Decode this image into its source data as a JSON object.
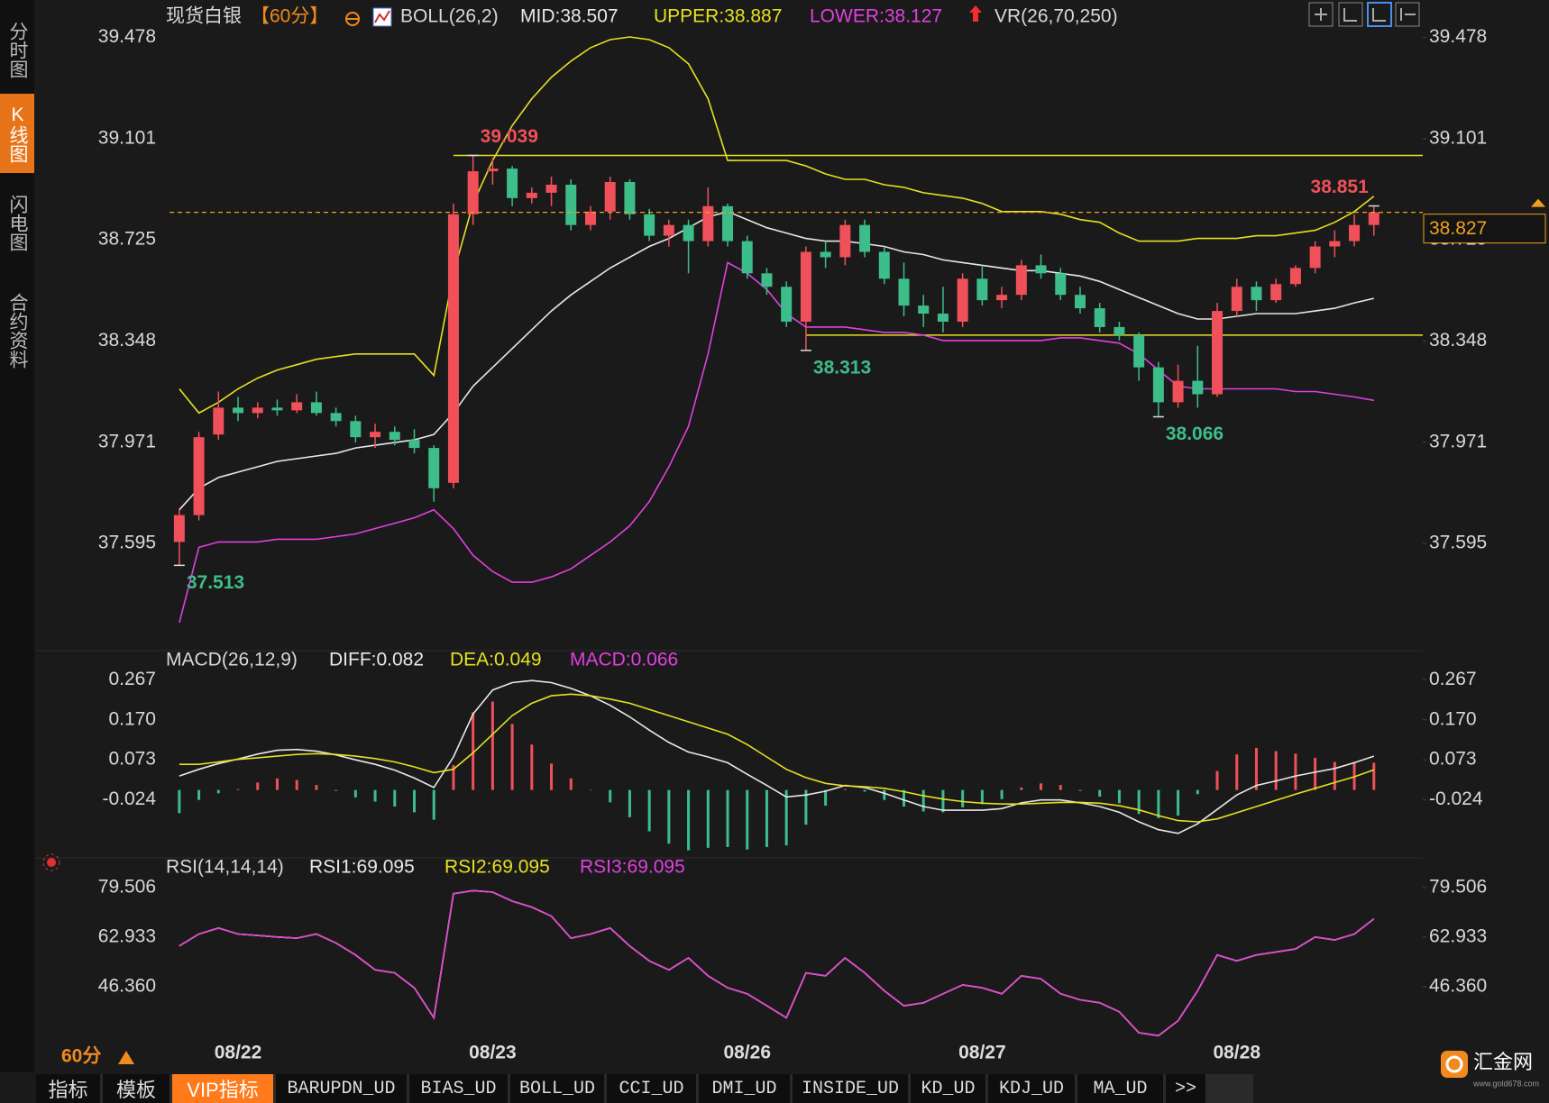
{
  "chart_data": [
    {
      "type": "candlestick",
      "title": "现货白银",
      "period": "【60分】",
      "indicator": "BOLL(26,2)",
      "extra_indicator": "VR(26,70,250)",
      "up_color": "#f0505a",
      "down_color": "#3dbd8a",
      "candles": {
        "open": [
          37.6,
          37.7,
          38.0,
          38.1,
          38.08,
          38.1,
          38.09,
          38.12,
          38.08,
          38.05,
          37.99,
          38.01,
          37.98,
          37.95,
          37.82,
          38.82,
          38.98,
          38.99,
          38.88,
          38.9,
          38.93,
          38.78,
          38.83,
          38.94,
          38.82,
          38.74,
          38.78,
          38.72,
          38.85,
          38.72,
          38.6,
          38.55,
          38.42,
          38.68,
          38.66,
          38.78,
          38.68,
          38.58,
          38.48,
          38.45,
          38.42,
          38.58,
          38.5,
          38.52,
          38.63,
          38.6,
          38.52,
          38.47,
          38.4,
          38.37,
          38.25,
          38.12,
          38.2,
          38.15,
          38.46,
          38.55,
          38.5,
          38.56,
          38.62,
          38.7,
          38.72,
          38.78
        ],
        "high": [
          37.72,
          38.01,
          38.16,
          38.14,
          38.12,
          38.13,
          38.15,
          38.16,
          38.1,
          38.07,
          38.04,
          38.03,
          38.02,
          37.96,
          38.86,
          39.039,
          39.03,
          39.0,
          38.92,
          38.96,
          38.95,
          38.85,
          38.96,
          38.95,
          38.84,
          38.8,
          38.8,
          38.92,
          38.86,
          38.74,
          38.62,
          38.57,
          38.7,
          38.72,
          38.8,
          38.8,
          38.7,
          38.64,
          38.52,
          38.55,
          38.6,
          38.63,
          38.55,
          38.65,
          38.67,
          38.62,
          38.55,
          38.49,
          38.42,
          38.38,
          38.27,
          38.26,
          38.33,
          38.49,
          38.58,
          38.57,
          38.58,
          38.63,
          38.72,
          38.76,
          38.82,
          38.851
        ],
        "low": [
          37.513,
          37.68,
          37.98,
          38.05,
          38.06,
          38.07,
          38.08,
          38.07,
          38.03,
          37.97,
          37.95,
          37.96,
          37.93,
          37.75,
          37.8,
          38.78,
          38.93,
          38.85,
          38.86,
          38.85,
          38.76,
          38.76,
          38.8,
          38.8,
          38.72,
          38.7,
          38.6,
          38.7,
          38.7,
          38.58,
          38.52,
          38.4,
          38.313,
          38.62,
          38.63,
          38.66,
          38.56,
          38.44,
          38.4,
          38.38,
          38.4,
          38.48,
          38.47,
          38.5,
          38.58,
          38.5,
          38.45,
          38.38,
          38.35,
          38.2,
          38.066,
          38.1,
          38.1,
          38.14,
          38.44,
          38.46,
          38.49,
          38.55,
          38.6,
          38.66,
          38.7,
          38.74
        ],
        "close": [
          37.7,
          37.99,
          38.1,
          38.08,
          38.1,
          38.09,
          38.12,
          38.08,
          38.05,
          37.99,
          38.01,
          37.98,
          37.95,
          37.8,
          38.82,
          38.98,
          38.99,
          38.88,
          38.9,
          38.93,
          38.78,
          38.83,
          38.94,
          38.82,
          38.74,
          38.78,
          38.72,
          38.85,
          38.72,
          38.6,
          38.55,
          38.42,
          38.68,
          38.66,
          38.78,
          38.68,
          38.58,
          38.48,
          38.45,
          38.42,
          38.58,
          38.5,
          38.52,
          38.63,
          38.6,
          38.52,
          38.47,
          38.4,
          38.37,
          38.25,
          38.12,
          38.2,
          38.15,
          38.46,
          38.55,
          38.5,
          38.56,
          38.62,
          38.7,
          38.72,
          38.78,
          38.827
        ]
      },
      "series": [
        {
          "name": "MID:38.507",
          "color": "#e8e8e8",
          "values": [
            37.72,
            37.8,
            37.84,
            37.86,
            37.88,
            37.9,
            37.91,
            37.92,
            37.93,
            37.95,
            37.96,
            37.97,
            37.98,
            38.0,
            38.08,
            38.18,
            38.25,
            38.32,
            38.39,
            38.46,
            38.52,
            38.57,
            38.62,
            38.66,
            38.7,
            38.73,
            38.77,
            38.81,
            38.83,
            38.8,
            38.77,
            38.75,
            38.73,
            38.72,
            38.72,
            38.71,
            38.7,
            38.68,
            38.67,
            38.65,
            38.64,
            38.63,
            38.62,
            38.61,
            38.61,
            38.6,
            38.59,
            38.57,
            38.54,
            38.51,
            38.48,
            38.45,
            38.43,
            38.43,
            38.44,
            38.45,
            38.45,
            38.45,
            38.46,
            38.47,
            38.49,
            38.507
          ]
        },
        {
          "name": "UPPER:38.887",
          "color": "#e6e020",
          "values": [
            38.17,
            38.08,
            38.12,
            38.17,
            38.21,
            38.24,
            38.26,
            38.28,
            38.29,
            38.3,
            38.3,
            38.3,
            38.3,
            38.22,
            38.6,
            38.86,
            39.02,
            39.15,
            39.25,
            39.33,
            39.39,
            39.44,
            39.47,
            39.48,
            39.47,
            39.44,
            39.38,
            39.25,
            39.02,
            39.02,
            39.02,
            39.02,
            39.0,
            38.97,
            38.95,
            38.95,
            38.93,
            38.92,
            38.9,
            38.89,
            38.88,
            38.86,
            38.83,
            38.83,
            38.83,
            38.82,
            38.8,
            38.79,
            38.75,
            38.72,
            38.72,
            38.72,
            38.73,
            38.73,
            38.73,
            38.74,
            38.74,
            38.75,
            38.76,
            38.79,
            38.83,
            38.887
          ]
        },
        {
          "name": "LOWER:38.127",
          "color": "#e040e0",
          "values": [
            37.3,
            37.58,
            37.6,
            37.6,
            37.6,
            37.61,
            37.61,
            37.61,
            37.62,
            37.63,
            37.65,
            37.67,
            37.69,
            37.72,
            37.65,
            37.55,
            37.49,
            37.45,
            37.45,
            37.47,
            37.5,
            37.55,
            37.6,
            37.66,
            37.75,
            37.88,
            38.03,
            38.3,
            38.64,
            38.6,
            38.54,
            38.45,
            38.4,
            38.4,
            38.4,
            38.39,
            38.38,
            38.38,
            38.37,
            38.35,
            38.35,
            38.35,
            38.35,
            38.35,
            38.35,
            38.36,
            38.36,
            38.35,
            38.34,
            38.3,
            38.24,
            38.18,
            38.17,
            38.17,
            38.17,
            38.17,
            38.17,
            38.16,
            38.16,
            38.15,
            38.14,
            38.127
          ]
        }
      ],
      "ylim": [
        37.219,
        39.584
      ],
      "yticks": [
        39.478,
        39.101,
        38.725,
        38.348,
        37.971,
        37.595
      ],
      "hlines": [
        39.039,
        38.37
      ],
      "hline_color": "#e6e020",
      "last_price": 38.827,
      "last_price_color": "#f0a020"
    },
    {
      "type": "macd",
      "title": "MACD(26,12,9)",
      "up_color": "#f0505a",
      "down_color": "#3dbd8a",
      "series": [
        {
          "name": "DIFF:0.082",
          "color": "#e8e8e8",
          "values": [
            0.034,
            0.05,
            0.064,
            0.075,
            0.087,
            0.096,
            0.098,
            0.094,
            0.085,
            0.073,
            0.062,
            0.048,
            0.029,
            0.006,
            0.08,
            0.184,
            0.242,
            0.26,
            0.265,
            0.26,
            0.246,
            0.228,
            0.205,
            0.177,
            0.145,
            0.115,
            0.092,
            0.08,
            0.066,
            0.038,
            0.011,
            -0.017,
            -0.012,
            -0.003,
            0.011,
            0.006,
            -0.008,
            -0.024,
            -0.04,
            -0.049,
            -0.049,
            -0.049,
            -0.045,
            -0.031,
            -0.024,
            -0.024,
            -0.031,
            -0.04,
            -0.054,
            -0.077,
            -0.096,
            -0.105,
            -0.082,
            -0.047,
            -0.012,
            0.011,
            0.022,
            0.034,
            0.043,
            0.052,
            0.066,
            0.082
          ]
        },
        {
          "name": "DEA:0.049",
          "color": "#e6e020",
          "values": [
            0.062,
            0.062,
            0.068,
            0.074,
            0.078,
            0.082,
            0.086,
            0.088,
            0.086,
            0.082,
            0.076,
            0.068,
            0.056,
            0.042,
            0.05,
            0.09,
            0.135,
            0.18,
            0.21,
            0.228,
            0.232,
            0.228,
            0.22,
            0.21,
            0.195,
            0.18,
            0.165,
            0.15,
            0.135,
            0.11,
            0.08,
            0.05,
            0.03,
            0.016,
            0.01,
            0.008,
            0.004,
            -0.004,
            -0.014,
            -0.022,
            -0.028,
            -0.032,
            -0.034,
            -0.034,
            -0.032,
            -0.03,
            -0.03,
            -0.032,
            -0.038,
            -0.048,
            -0.062,
            -0.074,
            -0.077,
            -0.07,
            -0.055,
            -0.04,
            -0.025,
            -0.01,
            0.004,
            0.018,
            0.032,
            0.049
          ]
        },
        {
          "name": "MACD:0.066",
          "color": "#e040e0",
          "type": "bar",
          "values": [
            -0.056,
            -0.024,
            -0.008,
            0.002,
            0.018,
            0.028,
            0.024,
            0.012,
            -0.002,
            -0.018,
            -0.028,
            -0.04,
            -0.054,
            -0.072,
            0.06,
            0.188,
            0.214,
            0.16,
            0.11,
            0.064,
            0.028,
            0,
            -0.03,
            -0.066,
            -0.1,
            -0.13,
            -0.146,
            -0.14,
            -0.138,
            -0.144,
            -0.138,
            -0.134,
            -0.084,
            -0.038,
            0.002,
            -0.004,
            -0.024,
            -0.04,
            -0.052,
            -0.054,
            -0.042,
            -0.034,
            -0.022,
            0.006,
            0.016,
            0.012,
            -0.002,
            -0.016,
            -0.032,
            -0.058,
            -0.068,
            -0.062,
            -0.01,
            0.046,
            0.086,
            0.102,
            0.094,
            0.088,
            0.078,
            0.068,
            0.068,
            0.066
          ]
        }
      ],
      "ylim": [
        -0.16,
        0.309
      ],
      "yticks": [
        0.267,
        {
          "value": 0.17,
          "label": "0.170"
        },
        0.073,
        -0.024
      ]
    },
    {
      "type": "line",
      "title": "RSI(14,14,14)",
      "categories": [
        null,
        null,
        null,
        "08/22",
        null,
        null,
        null,
        null,
        null,
        null,
        null,
        null,
        null,
        null,
        null,
        null,
        "08/23",
        null,
        null,
        null,
        null,
        null,
        null,
        null,
        null,
        null,
        null,
        null,
        null,
        "08/26",
        null,
        null,
        null,
        null,
        null,
        null,
        null,
        null,
        null,
        null,
        null,
        "08/27",
        null,
        null,
        null,
        null,
        null,
        null,
        null,
        null,
        null,
        null,
        null,
        null,
        "08/28",
        null,
        null,
        null,
        null,
        null,
        null,
        null
      ],
      "series": [
        {
          "name": "RSI1:69.095",
          "color": "#e8e8e8",
          "values": [
            60,
            64,
            66,
            64,
            63.5,
            63,
            62.6,
            64,
            61,
            57,
            52,
            51,
            46,
            36,
            77.5,
            78.5,
            78,
            75,
            73,
            70,
            62.6,
            64,
            66,
            60,
            55,
            52,
            56,
            50,
            46,
            44,
            40,
            36,
            51,
            50,
            56,
            51,
            45,
            40,
            41,
            44,
            47,
            46,
            44,
            50,
            49,
            44,
            42,
            41,
            38,
            31,
            30,
            35,
            45,
            57,
            55,
            57,
            58,
            59,
            63,
            62,
            64,
            69.095
          ]
        },
        {
          "name": "RSI2:69.095",
          "color": "#e6e020",
          "values": [
            60,
            64,
            66,
            64,
            63.5,
            63,
            62.6,
            64,
            61,
            57,
            52,
            51,
            46,
            36,
            77.5,
            78.5,
            78,
            75,
            73,
            70,
            62.6,
            64,
            66,
            60,
            55,
            52,
            56,
            50,
            46,
            44,
            40,
            36,
            51,
            50,
            56,
            51,
            45,
            40,
            41,
            44,
            47,
            46,
            44,
            50,
            49,
            44,
            42,
            41,
            38,
            31,
            30,
            35,
            45,
            57,
            55,
            57,
            58,
            59,
            63,
            62,
            64,
            69.095
          ]
        },
        {
          "name": "RSI3:69.095",
          "color": "#e040e0",
          "values": [
            60,
            64,
            66,
            64,
            63.5,
            63,
            62.6,
            64,
            61,
            57,
            52,
            51,
            46,
            36,
            77.5,
            78.5,
            78,
            75,
            73,
            70,
            62.6,
            64,
            66,
            60,
            55,
            52,
            56,
            50,
            46,
            44,
            40,
            36,
            51,
            50,
            56,
            51,
            45,
            40,
            41,
            44,
            47,
            46,
            44,
            50,
            49,
            44,
            42,
            41,
            38,
            31,
            30,
            35,
            45,
            57,
            55,
            57,
            58,
            59,
            63,
            62,
            64,
            69.095
          ]
        }
      ],
      "ylim": [
        29.79,
        87.04
      ],
      "yticks": [
        79.506,
        62.933,
        {
          "value": 46.36,
          "label": "46.360"
        }
      ]
    }
  ],
  "ui": {
    "side_tabs": [
      "分时图",
      "K线图",
      "闪电图",
      "合约资料"
    ],
    "period_label": "60分",
    "bottom_tabs": [
      "指标",
      "模板",
      "VIP指标",
      "BARUPDN_UD",
      "BIAS_UD",
      "BOLL_UD",
      "CCI_UD",
      "DMI_UD",
      "INSIDE_UD",
      "KD_UD",
      "KDJ_UD",
      "MA_UD",
      ">>"
    ],
    "logo": "汇金网",
    "logo_url": "www.gold678.com"
  }
}
